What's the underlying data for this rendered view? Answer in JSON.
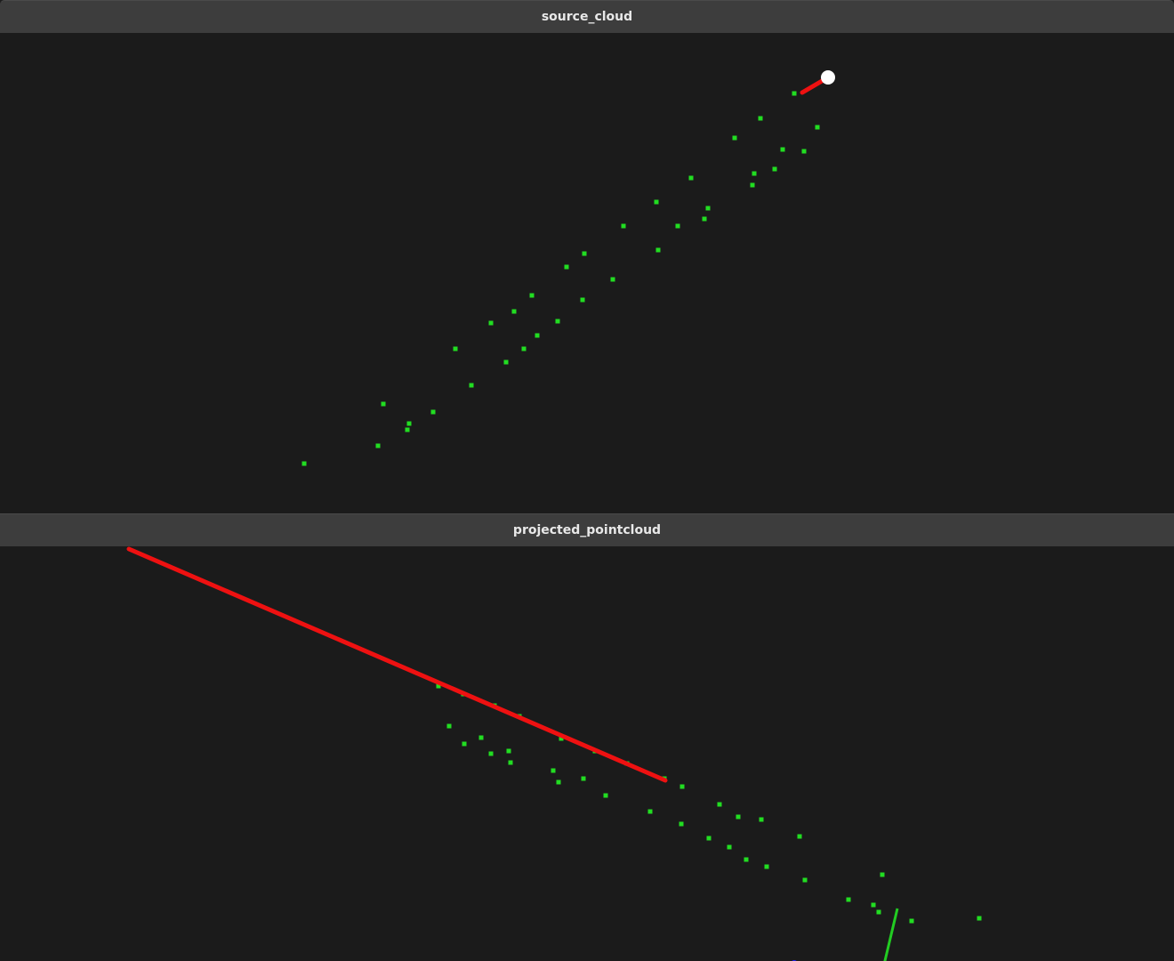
{
  "windows": [
    {
      "id": "source",
      "title": "source_cloud"
    },
    {
      "id": "projected",
      "title": "projected_pointcloud"
    }
  ],
  "colors": {
    "titlebar": "#3d3d3d",
    "title_text": "#e8e8e8",
    "viewport_bg": "#1b1b1b",
    "point": "#22dd22",
    "axis_x": "#ee1111",
    "axis_y": "#22cc22",
    "axis_z": "#2222ff",
    "marker": "#ffffff"
  }
}
